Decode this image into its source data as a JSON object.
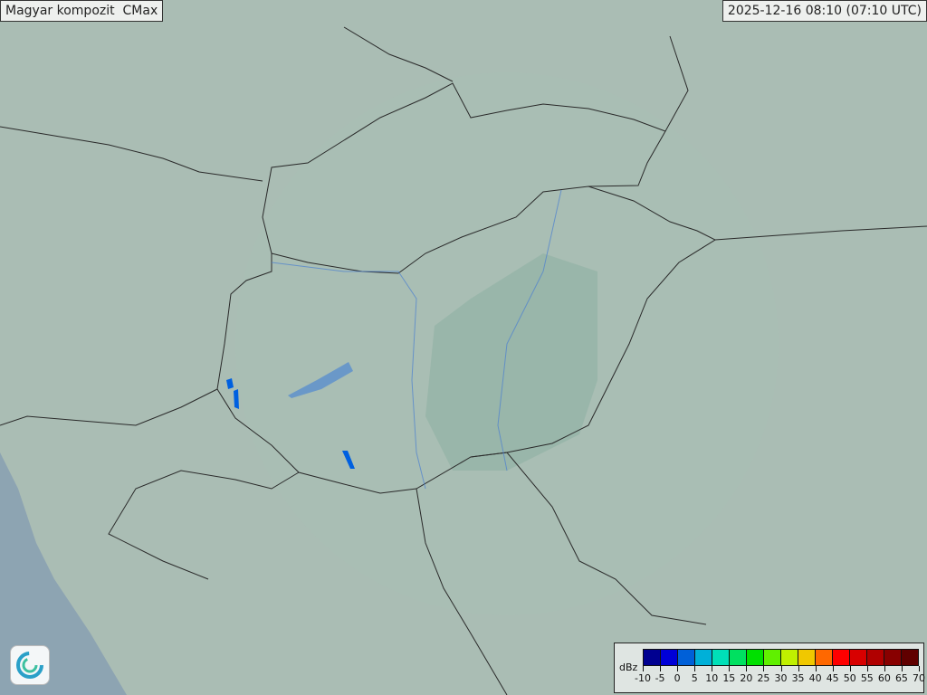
{
  "header": {
    "title": "Magyar kompozit  CMax",
    "timestamp": "2025-12-16 08:10 (07:10 UTC)"
  },
  "legend": {
    "unit": "dBz",
    "ticks": [
      "-10",
      "-5",
      "0",
      "5",
      "10",
      "15",
      "20",
      "25",
      "30",
      "35",
      "40",
      "45",
      "50",
      "55",
      "60",
      "65",
      "70"
    ],
    "colors": [
      "#000090",
      "#0000d8",
      "#0060d8",
      "#00b0d8",
      "#00e0b8",
      "#00e060",
      "#00e000",
      "#60f000",
      "#c0f000",
      "#f0c800",
      "#ff6800",
      "#ff0000",
      "#d80000",
      "#b00000",
      "#880000",
      "#600000"
    ]
  },
  "map": {
    "land_color": "#93a89c",
    "radar_coverage_color": "#c8d8d2",
    "sea_color": "#5d7a98",
    "echo_color": "#0060e0",
    "logo": "omsz-swirl-logo"
  }
}
